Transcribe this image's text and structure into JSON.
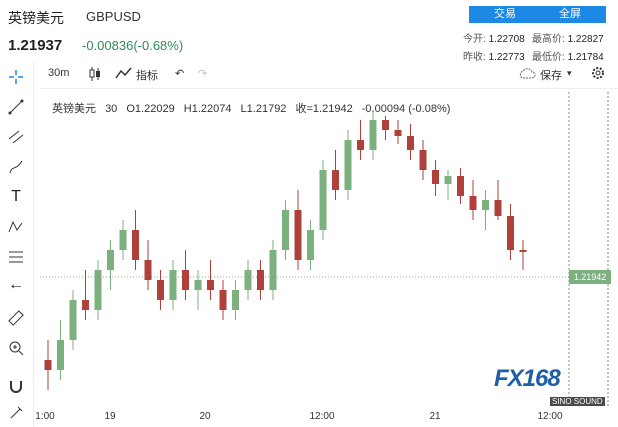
{
  "header": {
    "name": "英镑美元",
    "symbol": "GBPUSD",
    "last": "1.21937",
    "change": "-0.00836(-0.68%)",
    "trade_button": "交易",
    "fullscreen_button": "全屏",
    "stats": {
      "open_label": "今开:",
      "open": "1.22708",
      "high_label": "最高价:",
      "high": "1.22827",
      "prev_close_label": "昨收:",
      "prev_close": "1.22773",
      "low_label": "最低价:",
      "low": "1.21784"
    }
  },
  "toolbar": {
    "interval": "30m",
    "indicators": "指标",
    "save": "保存"
  },
  "legend": {
    "name": "英镑美元",
    "interval": "30",
    "open": "O1.22029",
    "high": "H1.22074",
    "low": "L1.21792",
    "close": "收=1.21942",
    "change": "-0.00094 (-0.08%)"
  },
  "price_tag": "1.21942",
  "x_labels": [
    "1:00",
    "19",
    "20",
    "12:00",
    "21",
    "12:00"
  ],
  "logo": {
    "main": "FX168",
    "sub": "SINO SOUND"
  },
  "colors": {
    "up": "#7cb07e",
    "down": "#b0403a",
    "accent": "#1e88e5"
  },
  "chart_data": {
    "type": "candlestick",
    "y_range": [
      1.212,
      1.227
    ],
    "last_price": 1.21942,
    "candles": [
      [
        1.214,
        1.215,
        1.2125,
        1.2135
      ],
      [
        1.2135,
        1.216,
        1.213,
        1.215
      ],
      [
        1.215,
        1.2175,
        1.2145,
        1.217
      ],
      [
        1.217,
        1.2185,
        1.216,
        1.2165
      ],
      [
        1.2165,
        1.219,
        1.216,
        1.2185
      ],
      [
        1.2185,
        1.22,
        1.2175,
        1.2195
      ],
      [
        1.2195,
        1.221,
        1.219,
        1.2205
      ],
      [
        1.2205,
        1.2215,
        1.2185,
        1.219
      ],
      [
        1.219,
        1.22,
        1.2175,
        1.218
      ],
      [
        1.218,
        1.2185,
        1.2165,
        1.217
      ],
      [
        1.217,
        1.219,
        1.2165,
        1.2185
      ],
      [
        1.2185,
        1.2195,
        1.217,
        1.2175
      ],
      [
        1.2175,
        1.2185,
        1.2165,
        1.218
      ],
      [
        1.218,
        1.219,
        1.217,
        1.2175
      ],
      [
        1.2175,
        1.218,
        1.216,
        1.2165
      ],
      [
        1.2165,
        1.218,
        1.216,
        1.2175
      ],
      [
        1.2175,
        1.219,
        1.217,
        1.2185
      ],
      [
        1.2185,
        1.219,
        1.217,
        1.2175
      ],
      [
        1.2175,
        1.22,
        1.217,
        1.2195
      ],
      [
        1.2195,
        1.222,
        1.219,
        1.2215
      ],
      [
        1.2215,
        1.2225,
        1.2185,
        1.219
      ],
      [
        1.219,
        1.221,
        1.2185,
        1.2205
      ],
      [
        1.2205,
        1.224,
        1.22,
        1.2235
      ],
      [
        1.2235,
        1.2245,
        1.222,
        1.2225
      ],
      [
        1.2225,
        1.2255,
        1.222,
        1.225
      ],
      [
        1.225,
        1.226,
        1.224,
        1.2245
      ],
      [
        1.2245,
        1.2265,
        1.224,
        1.226
      ],
      [
        1.226,
        1.2262,
        1.225,
        1.2255
      ],
      [
        1.2255,
        1.226,
        1.2248,
        1.2252
      ],
      [
        1.2252,
        1.2258,
        1.224,
        1.2245
      ],
      [
        1.2245,
        1.225,
        1.223,
        1.2235
      ],
      [
        1.2235,
        1.224,
        1.2222,
        1.2228
      ],
      [
        1.2228,
        1.2235,
        1.222,
        1.2232
      ],
      [
        1.2232,
        1.2236,
        1.2218,
        1.2222
      ],
      [
        1.2222,
        1.223,
        1.221,
        1.2215
      ],
      [
        1.2215,
        1.2225,
        1.2205,
        1.222
      ],
      [
        1.222,
        1.223,
        1.221,
        1.2212
      ],
      [
        1.2212,
        1.2218,
        1.219,
        1.2195
      ],
      [
        1.2195,
        1.22,
        1.2185,
        1.2194
      ]
    ]
  }
}
